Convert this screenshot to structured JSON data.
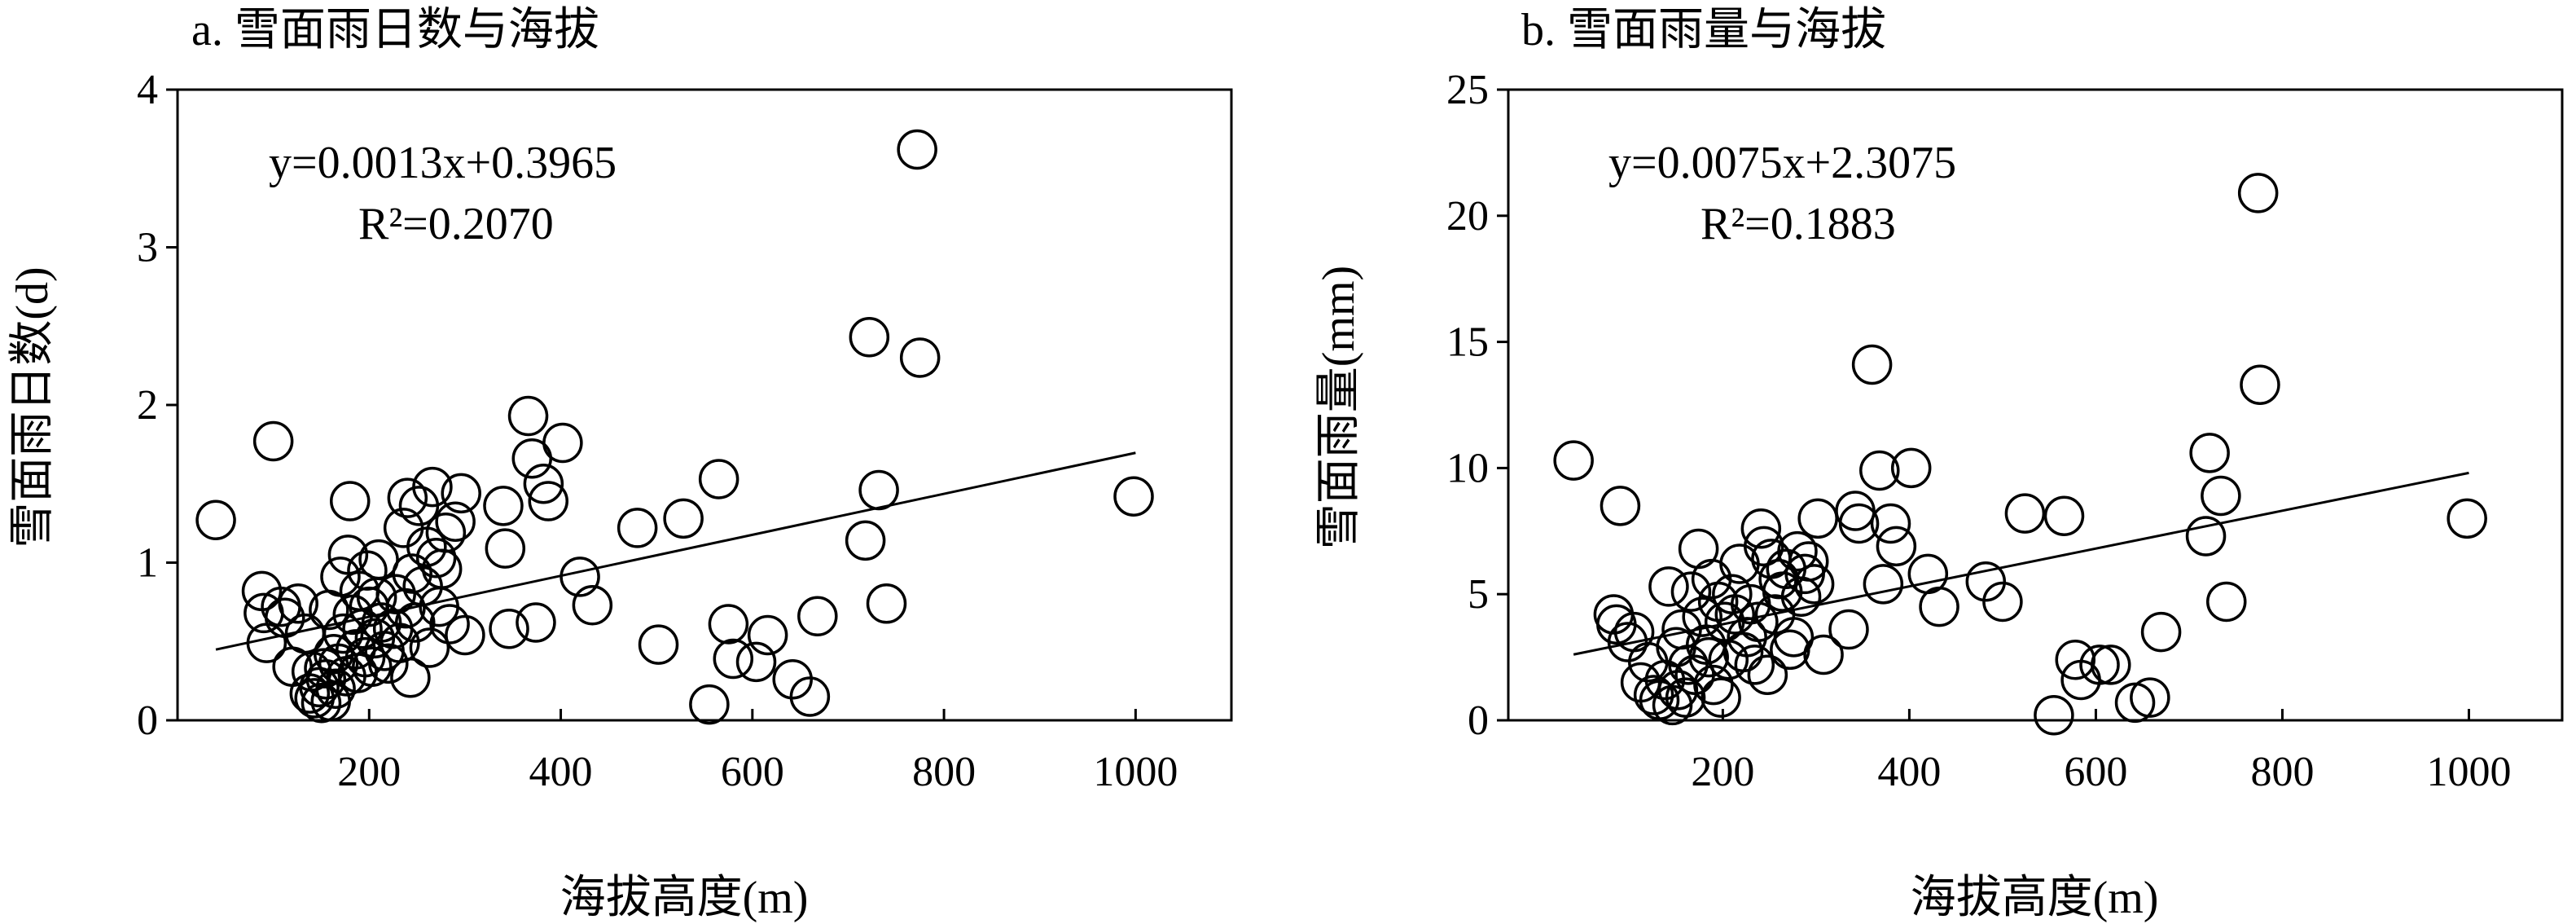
{
  "chart_data": [
    {
      "type": "scatter",
      "title": "a. 雪面雨日数与海拔",
      "xlabel": "海拔高度(m)",
      "ylabel": "雪面雨日数(d)",
      "xlim": [
        0,
        1100
      ],
      "ylim": [
        0,
        4
      ],
      "xticks": [
        "200",
        "400",
        "600",
        "800",
        "1000"
      ],
      "yticks": [
        "0",
        "1",
        "2",
        "3",
        "4"
      ],
      "grid": false,
      "equation": "y=0.0013x+0.3965",
      "r2": "R²=0.2070",
      "trendline": {
        "slope": 0.0013,
        "intercept": 0.3965,
        "x_range": [
          40,
          1000
        ]
      },
      "points": [
        [
          40,
          1.27
        ],
        [
          88,
          0.82
        ],
        [
          90,
          0.68
        ],
        [
          93,
          0.49
        ],
        [
          100,
          1.77
        ],
        [
          108,
          0.72
        ],
        [
          112,
          0.65
        ],
        [
          120,
          0.34
        ],
        [
          126,
          0.74
        ],
        [
          133,
          0.55
        ],
        [
          138,
          0.17
        ],
        [
          140,
          0.31
        ],
        [
          143,
          0.14
        ],
        [
          148,
          0.21
        ],
        [
          150,
          0.11
        ],
        [
          153,
          0.33
        ],
        [
          155,
          0.26
        ],
        [
          158,
          0.7
        ],
        [
          160,
          0.12
        ],
        [
          163,
          0.42
        ],
        [
          165,
          0.2
        ],
        [
          168,
          0.36
        ],
        [
          170,
          0.91
        ],
        [
          173,
          0.55
        ],
        [
          176,
          0.28
        ],
        [
          178,
          1.05
        ],
        [
          180,
          1.39
        ],
        [
          183,
          0.67
        ],
        [
          186,
          0.45
        ],
        [
          188,
          0.3
        ],
        [
          190,
          0.82
        ],
        [
          193,
          0.58
        ],
        [
          196,
          0.4
        ],
        [
          198,
          0.95
        ],
        [
          200,
          0.72
        ],
        [
          203,
          0.34
        ],
        [
          206,
          0.52
        ],
        [
          208,
          0.78
        ],
        [
          210,
          1.02
        ],
        [
          213,
          0.62
        ],
        [
          216,
          0.44
        ],
        [
          220,
          0.36
        ],
        [
          225,
          0.58
        ],
        [
          228,
          0.8
        ],
        [
          232,
          0.49
        ],
        [
          236,
          1.22
        ],
        [
          238,
          0.71
        ],
        [
          240,
          1.41
        ],
        [
          243,
          0.27
        ],
        [
          245,
          0.93
        ],
        [
          248,
          0.62
        ],
        [
          252,
          1.36
        ],
        [
          256,
          0.85
        ],
        [
          260,
          1.1
        ],
        [
          263,
          0.46
        ],
        [
          266,
          1.48
        ],
        [
          270,
          1.03
        ],
        [
          273,
          0.72
        ],
        [
          276,
          0.96
        ],
        [
          280,
          1.19
        ],
        [
          284,
          0.61
        ],
        [
          290,
          1.26
        ],
        [
          296,
          1.44
        ],
        [
          300,
          0.54
        ],
        [
          340,
          1.36
        ],
        [
          342,
          1.09
        ],
        [
          346,
          0.58
        ],
        [
          366,
          1.93
        ],
        [
          370,
          1.66
        ],
        [
          374,
          0.62
        ],
        [
          382,
          1.5
        ],
        [
          387,
          1.39
        ],
        [
          402,
          1.76
        ],
        [
          420,
          0.91
        ],
        [
          433,
          0.73
        ],
        [
          480,
          1.22
        ],
        [
          502,
          0.48
        ],
        [
          528,
          1.28
        ],
        [
          555,
          0.1
        ],
        [
          565,
          1.53
        ],
        [
          575,
          0.61
        ],
        [
          580,
          0.39
        ],
        [
          604,
          0.37
        ],
        [
          616,
          0.54
        ],
        [
          642,
          0.26
        ],
        [
          660,
          0.15
        ],
        [
          668,
          0.66
        ],
        [
          718,
          1.14
        ],
        [
          722,
          2.43
        ],
        [
          732,
          1.46
        ],
        [
          740,
          0.74
        ],
        [
          772,
          3.62
        ],
        [
          775,
          2.3
        ],
        [
          998,
          1.42
        ]
      ]
    },
    {
      "type": "scatter",
      "title": "b. 雪面雨量与海拔",
      "xlabel": "海拔高度(m)",
      "ylabel": "雪面雨量(mm)",
      "xlim": [
        -30,
        1100
      ],
      "ylim": [
        0,
        25
      ],
      "xticks": [
        "200",
        "400",
        "600",
        "800",
        "1000"
      ],
      "yticks": [
        "0",
        "5",
        "10",
        "15",
        "20",
        "25"
      ],
      "grid": false,
      "equation": "y=0.0075x+2.3075",
      "r2": "R²=0.1883",
      "trendline": {
        "slope": 0.0075,
        "intercept": 2.3075,
        "x_range": [
          40,
          1000
        ]
      },
      "points": [
        [
          40,
          10.3
        ],
        [
          83,
          4.2
        ],
        [
          86,
          3.8
        ],
        [
          90,
          8.5
        ],
        [
          98,
          3.1
        ],
        [
          105,
          3.5
        ],
        [
          112,
          1.5
        ],
        [
          120,
          2.3
        ],
        [
          126,
          1.0
        ],
        [
          132,
          0.8
        ],
        [
          138,
          1.6
        ],
        [
          142,
          5.3
        ],
        [
          146,
          0.6
        ],
        [
          150,
          2.9
        ],
        [
          152,
          1.2
        ],
        [
          156,
          3.6
        ],
        [
          160,
          0.9
        ],
        [
          163,
          2.2
        ],
        [
          166,
          5.1
        ],
        [
          170,
          1.8
        ],
        [
          174,
          6.8
        ],
        [
          178,
          4.1
        ],
        [
          182,
          3.0
        ],
        [
          185,
          2.5
        ],
        [
          188,
          5.6
        ],
        [
          190,
          1.4
        ],
        [
          195,
          4.7
        ],
        [
          198,
          0.9
        ],
        [
          202,
          3.9
        ],
        [
          206,
          2.4
        ],
        [
          210,
          5.0
        ],
        [
          213,
          4.2
        ],
        [
          218,
          6.2
        ],
        [
          222,
          2.7
        ],
        [
          226,
          3.3
        ],
        [
          230,
          4.6
        ],
        [
          234,
          2.2
        ],
        [
          238,
          3.9
        ],
        [
          241,
          7.6
        ],
        [
          244,
          6.9
        ],
        [
          248,
          1.8
        ],
        [
          252,
          6.4
        ],
        [
          256,
          4.2
        ],
        [
          260,
          5.6
        ],
        [
          264,
          5.1
        ],
        [
          268,
          6.0
        ],
        [
          272,
          2.8
        ],
        [
          276,
          3.3
        ],
        [
          280,
          6.7
        ],
        [
          284,
          4.9
        ],
        [
          288,
          5.8
        ],
        [
          292,
          6.3
        ],
        [
          298,
          5.4
        ],
        [
          302,
          8.0
        ],
        [
          308,
          2.6
        ],
        [
          335,
          3.6
        ],
        [
          342,
          8.3
        ],
        [
          346,
          7.8
        ],
        [
          360,
          14.1
        ],
        [
          368,
          9.9
        ],
        [
          372,
          5.4
        ],
        [
          380,
          7.8
        ],
        [
          386,
          6.9
        ],
        [
          402,
          10.0
        ],
        [
          420,
          5.8
        ],
        [
          432,
          4.5
        ],
        [
          482,
          5.5
        ],
        [
          500,
          4.7
        ],
        [
          524,
          8.2
        ],
        [
          555,
          0.2
        ],
        [
          566,
          8.1
        ],
        [
          578,
          2.4
        ],
        [
          584,
          1.6
        ],
        [
          604,
          2.2
        ],
        [
          616,
          2.2
        ],
        [
          642,
          0.7
        ],
        [
          658,
          0.9
        ],
        [
          670,
          3.5
        ],
        [
          718,
          7.3
        ],
        [
          722,
          10.6
        ],
        [
          734,
          8.9
        ],
        [
          740,
          4.7
        ],
        [
          774,
          20.9
        ],
        [
          776,
          13.3
        ],
        [
          998,
          8.0
        ]
      ]
    }
  ]
}
